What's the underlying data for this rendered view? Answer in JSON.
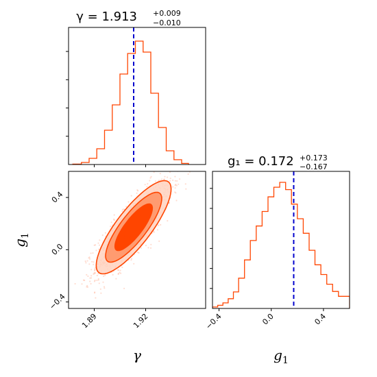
{
  "colors": {
    "sample": "#ff4500",
    "truth": "#0000cd",
    "frame": "#000000"
  },
  "chart_data": {
    "type": "corner",
    "parameters": [
      {
        "symbol": "γ",
        "label": "γ",
        "median": 1.913,
        "err_plus": 0.009,
        "err_minus": 0.01,
        "title_main": "γ = 1.913",
        "title_sup": "+0.009",
        "title_sub": "−0.010"
      },
      {
        "symbol": "g",
        "sub": "1",
        "median": 0.172,
        "err_plus": 0.173,
        "err_minus": 0.167,
        "title_main": "g₁ = 0.172",
        "title_sup": "+0.173",
        "title_sub": "−0.167"
      }
    ],
    "ranges": {
      "gamma": [
        1.875,
        1.955
      ],
      "g1": [
        -0.45,
        0.6
      ]
    },
    "ticks": {
      "gamma": {
        "values": [
          1.89,
          1.92
        ],
        "labels": [
          "1.89",
          "1.92"
        ]
      },
      "g1": {
        "values": [
          -0.4,
          0.0,
          0.4
        ],
        "labels": [
          "−0.4",
          "0.0",
          "0.4"
        ]
      }
    },
    "hist_gamma": {
      "edges": [
        1.8775,
        1.8825,
        1.887,
        1.8915,
        1.896,
        1.9005,
        1.905,
        1.9095,
        1.914,
        1.9185,
        1.923,
        1.9275,
        1.932,
        1.9365,
        1.941,
        1.945
      ],
      "counts": [
        0.3,
        1.5,
        4.5,
        11.5,
        25,
        43.5,
        66,
        81,
        90,
        82,
        52,
        27,
        10,
        3.5,
        0.8
      ]
    },
    "hist_g1": {
      "edges": [
        -0.45,
        -0.41,
        -0.37,
        -0.33,
        -0.29,
        -0.25,
        -0.205,
        -0.16,
        -0.115,
        -0.07,
        -0.025,
        0.02,
        0.065,
        0.11,
        0.155,
        0.2,
        0.245,
        0.29,
        0.335,
        0.38,
        0.425,
        0.47,
        0.515,
        0.56,
        0.6
      ],
      "counts": [
        0.6,
        1.3,
        2.3,
        4.0,
        6.8,
        12.5,
        20,
        28,
        34,
        40,
        46,
        50,
        52,
        49,
        43,
        37,
        31,
        24,
        18,
        14,
        10,
        7,
        5,
        5
      ]
    },
    "truth": {
      "gamma": 1.913,
      "g1": 0.172
    },
    "correlation": 0.82
  }
}
